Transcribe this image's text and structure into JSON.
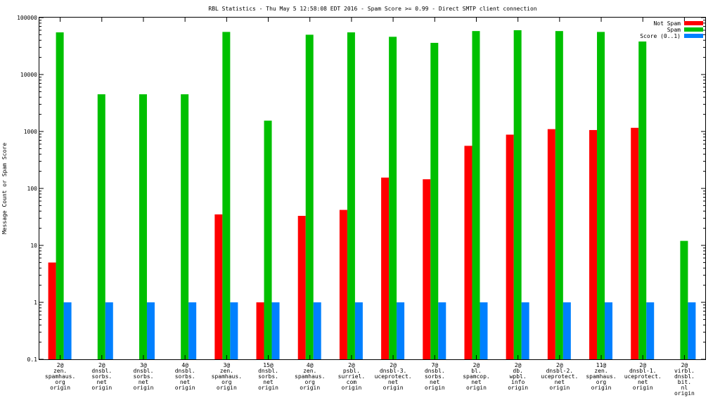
{
  "chart_data": {
    "type": "bar",
    "title": "RBL Statistics - Thu May  5 12:58:08 EDT 2016 - Spam Score >= 0.99 - Direct SMTP client connection",
    "ylabel": "Message Count or Spam Score",
    "xlabel": "",
    "yscale": "log",
    "ylim": [
      0.1,
      100000
    ],
    "grid": false,
    "legend_position": "top-right",
    "yticks": [
      "0.1",
      "1",
      "10",
      "100",
      "1000",
      "10000",
      "100000"
    ],
    "categories": [
      [
        "2@",
        "zen.",
        "spamhaus.",
        "org",
        "origin"
      ],
      [
        "2@",
        "dnsbl.",
        "sorbs.",
        "net",
        "origin"
      ],
      [
        "3@",
        "dnsbl.",
        "sorbs.",
        "net",
        "origin"
      ],
      [
        "4@",
        "dnsbl.",
        "sorbs.",
        "net",
        "origin"
      ],
      [
        "3@",
        "zen.",
        "spamhaus.",
        "org",
        "origin"
      ],
      [
        "15@",
        "dnsbl.",
        "sorbs.",
        "net",
        "origin"
      ],
      [
        "4@",
        "zen.",
        "spamhaus.",
        "org",
        "origin"
      ],
      [
        "2@",
        "psbl.",
        "surriel.",
        "com",
        "origin"
      ],
      [
        "2@",
        "dnsbl-3.",
        "uceprotect.",
        "net",
        "origin"
      ],
      [
        "7@",
        "dnsbl.",
        "sorbs.",
        "net",
        "origin"
      ],
      [
        "2@",
        "bl.",
        "spamcop.",
        "net",
        "origin"
      ],
      [
        "2@",
        "db.",
        "wpbl.",
        "info",
        "origin"
      ],
      [
        "2@",
        "dnsbl-2.",
        "uceprotect.",
        "net",
        "origin"
      ],
      [
        "11@",
        "zen.",
        "spamhaus.",
        "org",
        "origin"
      ],
      [
        "2@",
        "dnsbl-1.",
        "uceprotect.",
        "net",
        "origin"
      ],
      [
        "2@",
        "virbl.",
        "dnsbl.",
        "bit.",
        "nl",
        "origin"
      ]
    ],
    "series": [
      {
        "name": "Not Spam",
        "color": "#ff0000",
        "values": [
          5,
          null,
          null,
          null,
          35,
          1,
          33,
          42,
          155,
          145,
          560,
          880,
          1100,
          1060,
          1160,
          null
        ]
      },
      {
        "name": "Spam",
        "color": "#00c000",
        "values": [
          55000,
          4500,
          4500,
          4500,
          56000,
          1550,
          50000,
          55000,
          46000,
          36000,
          58000,
          60000,
          58000,
          56000,
          38000,
          12
        ]
      },
      {
        "name": "Score (0..1)",
        "color": "#0080ff",
        "values": [
          1,
          1,
          1,
          1,
          1,
          1,
          1,
          1,
          1,
          1,
          1,
          1,
          1,
          1,
          1,
          1
        ]
      }
    ]
  }
}
